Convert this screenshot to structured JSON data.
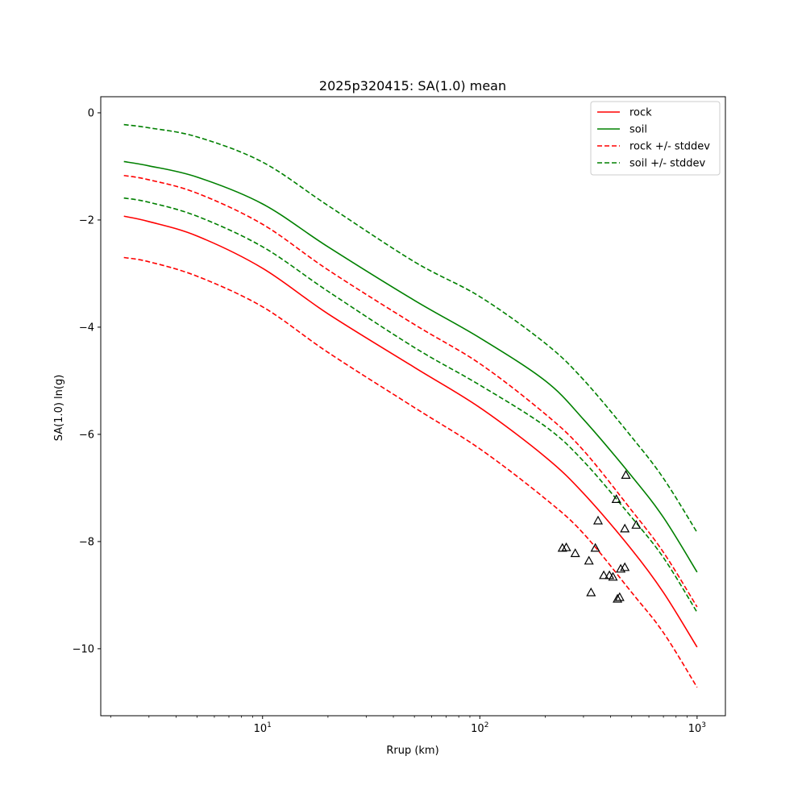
{
  "chart_data": {
    "type": "line",
    "title": "2025p320415: SA(1.0) mean",
    "xlabel": "Rrup (km)",
    "ylabel": "SA(1.0) ln(g)",
    "xscale": "log",
    "xlim": [
      1.8,
      1350
    ],
    "ylim": [
      -11.25,
      0.3
    ],
    "x_ticks": [
      {
        "value": 10,
        "base": "10",
        "exp": "1"
      },
      {
        "value": 100,
        "base": "10",
        "exp": "2"
      },
      {
        "value": 1000,
        "base": "10",
        "exp": "3"
      }
    ],
    "y_ticks": [
      {
        "value": 0,
        "label": "0"
      },
      {
        "value": -2,
        "label": "−2"
      },
      {
        "value": -4,
        "label": "−4"
      },
      {
        "value": -6,
        "label": "−6"
      },
      {
        "value": -8,
        "label": "−8"
      },
      {
        "value": -10,
        "label": "−10"
      }
    ],
    "grid": false,
    "legend_position": "top-right",
    "x": [
      2.3,
      3,
      5,
      10,
      20,
      50,
      100,
      200,
      300,
      500,
      700,
      1000
    ],
    "series": [
      {
        "name": "rock",
        "style": "solid",
        "color": "#ff0000",
        "legend": true,
        "values": [
          -1.93,
          -2.03,
          -2.3,
          -2.9,
          -3.75,
          -4.75,
          -5.5,
          -6.42,
          -7.1,
          -8.15,
          -8.95,
          -9.97
        ]
      },
      {
        "name": "soil",
        "style": "solid",
        "color": "#008000",
        "legend": true,
        "values": [
          -0.91,
          -0.99,
          -1.2,
          -1.7,
          -2.5,
          -3.5,
          -4.2,
          -5.0,
          -5.72,
          -6.78,
          -7.55,
          -8.57
        ]
      },
      {
        "name": "rock +/- stddev",
        "style": "dashed",
        "color": "#ff0000",
        "legend": true,
        "values": [
          -2.7,
          -2.78,
          -3.05,
          -3.62,
          -4.47,
          -5.5,
          -6.27,
          -7.2,
          -7.85,
          -8.95,
          -9.7,
          -10.72
        ]
      },
      {
        "name": "rock +/- stddev",
        "style": "dashed",
        "color": "#ff0000",
        "legend": false,
        "values": [
          -1.17,
          -1.25,
          -1.5,
          -2.08,
          -2.93,
          -3.95,
          -4.68,
          -5.62,
          -6.3,
          -7.42,
          -8.2,
          -9.22
        ]
      },
      {
        "name": "soil +/- stddev",
        "style": "dashed",
        "color": "#008000",
        "legend": true,
        "values": [
          -0.22,
          -0.28,
          -0.45,
          -0.92,
          -1.73,
          -2.78,
          -3.43,
          -4.3,
          -4.98,
          -6.05,
          -6.82,
          -7.83
        ]
      },
      {
        "name": "soil +/- stddev",
        "style": "dashed",
        "color": "#008000",
        "legend": false,
        "values": [
          -1.59,
          -1.67,
          -1.93,
          -2.5,
          -3.33,
          -4.38,
          -5.08,
          -5.85,
          -6.5,
          -7.55,
          -8.3,
          -9.32
        ]
      }
    ],
    "observations": {
      "marker": "triangle",
      "points": [
        {
          "x": 240,
          "y": -8.12
        },
        {
          "x": 250,
          "y": -8.11
        },
        {
          "x": 275,
          "y": -8.22
        },
        {
          "x": 318,
          "y": -8.36
        },
        {
          "x": 325,
          "y": -8.95
        },
        {
          "x": 340,
          "y": -8.12
        },
        {
          "x": 350,
          "y": -7.61
        },
        {
          "x": 372,
          "y": -8.63
        },
        {
          "x": 395,
          "y": -8.63
        },
        {
          "x": 410,
          "y": -8.66
        },
        {
          "x": 425,
          "y": -7.21
        },
        {
          "x": 430,
          "y": -9.07
        },
        {
          "x": 440,
          "y": -9.04
        },
        {
          "x": 445,
          "y": -8.51
        },
        {
          "x": 465,
          "y": -8.48
        },
        {
          "x": 465,
          "y": -7.76
        },
        {
          "x": 470,
          "y": -6.76
        },
        {
          "x": 525,
          "y": -7.69
        }
      ]
    }
  }
}
